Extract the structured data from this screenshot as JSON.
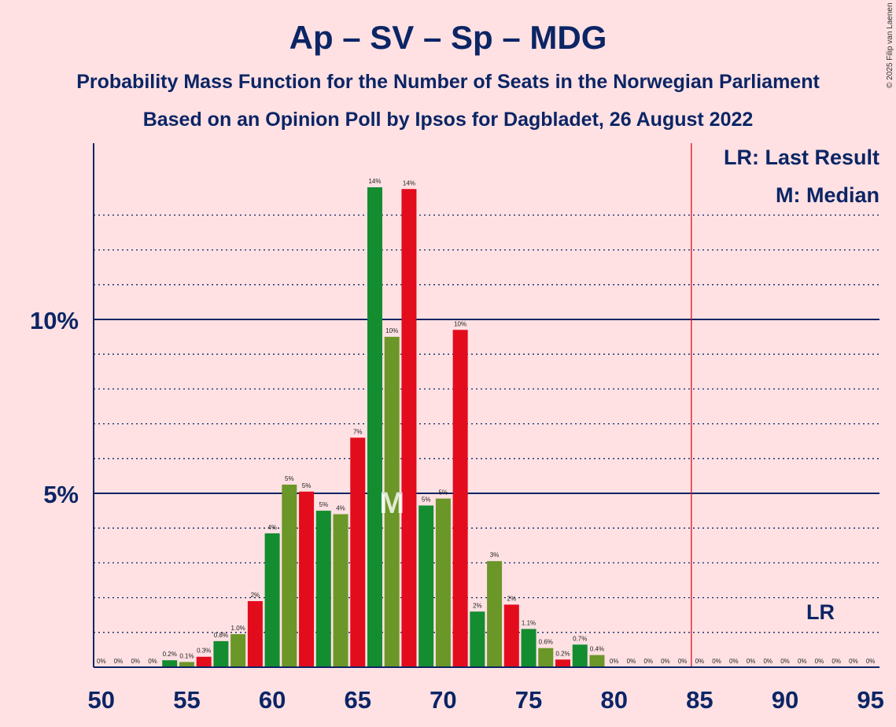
{
  "chart_data": {
    "type": "bar",
    "title": "Ap – SV – Sp – MDG",
    "subtitle": "Probability Mass Function for the Number of Seats in the Norwegian Parliament",
    "subtitle2": "Based on an Opinion Poll by Ipsos for Dagbladet, 26 August 2022",
    "copyright": "© 2025 Filip van Laenen",
    "x": [
      50,
      51,
      52,
      53,
      54,
      55,
      56,
      57,
      58,
      59,
      60,
      61,
      62,
      63,
      64,
      65,
      66,
      67,
      68,
      69,
      70,
      71,
      72,
      73,
      74,
      75,
      76,
      77,
      78,
      79,
      80,
      81,
      82,
      83,
      84,
      85,
      86,
      87,
      88,
      89,
      90,
      91,
      92,
      93,
      94,
      95
    ],
    "values": [
      0,
      0,
      0,
      0,
      0.2,
      0.15,
      0.3,
      0.75,
      0.95,
      1.9,
      3.85,
      5.25,
      5.05,
      4.5,
      4.4,
      6.6,
      13.8,
      9.5,
      13.75,
      4.65,
      4.85,
      9.7,
      1.6,
      3.05,
      1.8,
      1.1,
      0.55,
      0.22,
      0.65,
      0.35,
      0,
      0,
      0,
      0,
      0,
      0,
      0,
      0,
      0,
      0,
      0,
      0,
      0,
      0,
      0,
      0
    ],
    "labels": [
      "0%",
      "0%",
      "0%",
      "0%",
      "0.2%",
      "0.1%",
      "0.3%",
      "0.8%",
      "1.0%",
      "2%",
      "4%",
      "5%",
      "5%",
      "5%",
      "4%",
      "7%",
      "14%",
      "10%",
      "14%",
      "5%",
      "5%",
      "10%",
      "2%",
      "3%",
      "2%",
      "1.1%",
      "0.6%",
      "0.2%",
      "0.7%",
      "0.4%",
      "0%",
      "0%",
      "0%",
      "0%",
      "0%",
      "0%",
      "0%",
      "0%",
      "0%",
      "0%",
      "0%",
      "0%",
      "0%",
      "0%",
      "0%",
      "0%"
    ],
    "colors": [
      "#e30c1c",
      "#148c30",
      "#6b9628"
    ],
    "xticks": [
      50,
      55,
      60,
      65,
      70,
      75,
      80,
      85,
      90,
      95
    ],
    "xtick_labels": [
      "50",
      "55",
      "60",
      "65",
      "70",
      "75",
      "80",
      "85",
      "90",
      "95"
    ],
    "yticks": [
      5,
      10
    ],
    "ytick_labels": [
      "5%",
      "10%"
    ],
    "ylim": [
      0,
      15
    ],
    "xlim": [
      50,
      95
    ],
    "last_result": 85,
    "median": 67,
    "median_marker": "M",
    "lr_marker": "LR",
    "legend": [
      "LR: Last Result",
      "M: Median"
    ],
    "grid": true,
    "axis_color": "#0b2565",
    "last_result_color": "#e30c1c"
  }
}
